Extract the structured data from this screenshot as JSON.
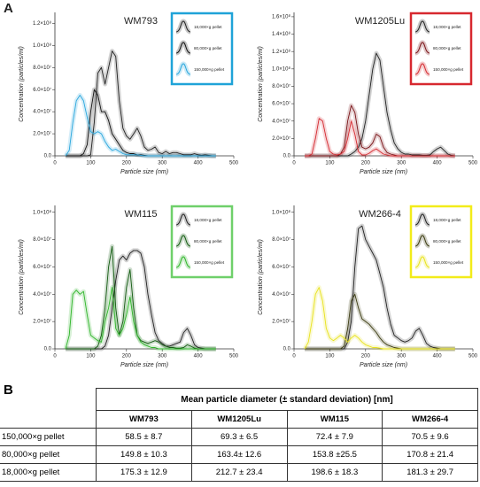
{
  "panels": {
    "a": "A",
    "b": "B"
  },
  "chart_data": [
    {
      "type": "line",
      "title": "WM793",
      "y_label": "Concentration (particles/ml)",
      "x_label": "Particle size (nm)",
      "legend_color": "#1fa3d8",
      "grid": false,
      "x": [
        30,
        40,
        50,
        60,
        70,
        80,
        90,
        100,
        110,
        120,
        130,
        140,
        150,
        160,
        170,
        180,
        190,
        200,
        210,
        220,
        230,
        240,
        250,
        260,
        270,
        280,
        290,
        300,
        310,
        320,
        330,
        340,
        350,
        360,
        370,
        380,
        390,
        400,
        410,
        420,
        430,
        440,
        450
      ],
      "xlim": [
        0,
        500
      ],
      "xticks": [
        0,
        100,
        200,
        300,
        400,
        500
      ],
      "ylim": [
        0,
        130000000.0
      ],
      "yticks": [
        {
          "value": 0,
          "label": "0.0"
        },
        {
          "value": 20000000.0,
          "label": "2.0×10⁷"
        },
        {
          "value": 40000000.0,
          "label": "4.0×10⁷"
        },
        {
          "value": 60000000.0,
          "label": "6.0×10⁷"
        },
        {
          "value": 80000000.0,
          "label": "8.0×10⁷"
        },
        {
          "value": 100000000.0,
          "label": "1.0×10⁸"
        },
        {
          "value": 120000000.0,
          "label": "1.2×10⁸"
        }
      ],
      "series": [
        {
          "name": "18,000×g pellet",
          "color": "#222222",
          "values": [
            0,
            0,
            0,
            0,
            0,
            0,
            0,
            1000000.0,
            30000000.0,
            75000000.0,
            80000000.0,
            65000000.0,
            80000000.0,
            95000000.0,
            90000000.0,
            50000000.0,
            25000000.0,
            18000000.0,
            15000000.0,
            20000000.0,
            25000000.0,
            18000000.0,
            8000000.0,
            5000000.0,
            6000000.0,
            8000000.0,
            3000000.0,
            2000000.0,
            4000000.0,
            2000000.0,
            3000000.0,
            3000000.0,
            2000000.0,
            1000000.0,
            1000000.0,
            1000000.0,
            2000000.0,
            1000000.0,
            500000.0,
            1000000.0,
            500000.0,
            0,
            0
          ]
        },
        {
          "name": "80,000×g pellet",
          "color": "#111111",
          "values": [
            0,
            0,
            0,
            0,
            0,
            2000000.0,
            10000000.0,
            40000000.0,
            60000000.0,
            55000000.0,
            40000000.0,
            40000000.0,
            32000000.0,
            20000000.0,
            15000000.0,
            10000000.0,
            5000000.0,
            3000000.0,
            2000000.0,
            2000000.0,
            1000000.0,
            1000000.0,
            500000.0,
            0,
            0,
            0,
            0,
            0,
            0,
            0,
            0,
            0,
            0,
            0,
            0,
            0,
            0,
            0,
            0,
            0,
            0,
            0,
            0
          ]
        },
        {
          "name": "150,000×g pellet",
          "color": "#2aa7dd",
          "values": [
            0,
            5000000.0,
            30000000.0,
            50000000.0,
            55000000.0,
            50000000.0,
            35000000.0,
            22000000.0,
            20000000.0,
            22000000.0,
            20000000.0,
            13000000.0,
            8000000.0,
            5000000.0,
            6000000.0,
            4000000.0,
            2000000.0,
            1000000.0,
            1000000.0,
            1000000.0,
            1000000.0,
            500000.0,
            0,
            0,
            0,
            0,
            0,
            0,
            0,
            0,
            0,
            0,
            0,
            0,
            0,
            0,
            0,
            0,
            0,
            0,
            0,
            0,
            0
          ]
        }
      ]
    },
    {
      "type": "line",
      "title": "WM1205Lu",
      "y_label": "Concentration (particles/ml)",
      "x_label": "Particle size (nm)",
      "legend_color": "#d7282f",
      "grid": false,
      "x": [
        30,
        40,
        50,
        60,
        70,
        80,
        90,
        100,
        110,
        120,
        130,
        140,
        150,
        160,
        170,
        180,
        190,
        200,
        210,
        220,
        230,
        240,
        250,
        260,
        270,
        280,
        290,
        300,
        310,
        320,
        330,
        340,
        350,
        360,
        370,
        380,
        390,
        400,
        410,
        420,
        430,
        440,
        450
      ],
      "xlim": [
        0,
        500
      ],
      "xticks": [
        0,
        100,
        200,
        300,
        400,
        500
      ],
      "ylim": [
        0,
        165000000.0
      ],
      "yticks": [
        {
          "value": 0,
          "label": "0.0"
        },
        {
          "value": 20000000.0,
          "label": "2.0×10⁷"
        },
        {
          "value": 40000000.0,
          "label": "4.0×10⁷"
        },
        {
          "value": 60000000.0,
          "label": "6.0×10⁷"
        },
        {
          "value": 80000000.0,
          "label": "8.0×10⁷"
        },
        {
          "value": 100000000.0,
          "label": "1.0×10⁸"
        },
        {
          "value": 120000000.0,
          "label": "1.2×10⁸"
        },
        {
          "value": 140000000.0,
          "label": "1.4×10⁸"
        },
        {
          "value": 160000000.0,
          "label": "1.6×10⁸"
        }
      ],
      "series": [
        {
          "name": "18,000×g pellet",
          "color": "#222222",
          "values": [
            0,
            0,
            0,
            0,
            0,
            0,
            0,
            0,
            0,
            0,
            0,
            0,
            0,
            2000000.0,
            5000000.0,
            10000000.0,
            20000000.0,
            40000000.0,
            70000000.0,
            100000000.0,
            118000000.0,
            110000000.0,
            80000000.0,
            50000000.0,
            30000000.0,
            15000000.0,
            8000000.0,
            4000000.0,
            2000000.0,
            2000000.0,
            1000000.0,
            1000000.0,
            1000000.0,
            500000.0,
            500000.0,
            1000000.0,
            5000000.0,
            8000000.0,
            10000000.0,
            6000000.0,
            2000000.0,
            500000.0,
            0
          ]
        },
        {
          "name": "80,000×g pellet",
          "color": "#7a1418",
          "values": [
            0,
            0,
            0,
            0,
            0,
            0,
            0,
            0,
            0,
            0,
            2000000.0,
            10000000.0,
            40000000.0,
            58000000.0,
            50000000.0,
            25000000.0,
            10000000.0,
            8000000.0,
            10000000.0,
            15000000.0,
            25000000.0,
            22000000.0,
            10000000.0,
            4000000.0,
            2000000.0,
            1000000.0,
            0,
            0,
            0,
            0,
            0,
            0,
            0,
            0,
            0,
            0,
            0,
            0,
            0,
            0,
            0,
            0,
            0
          ]
        },
        {
          "name": "150,000×g pellet",
          "color": "#d42a30",
          "values": [
            0,
            0,
            2000000.0,
            20000000.0,
            43000000.0,
            40000000.0,
            20000000.0,
            5000000.0,
            2000000.0,
            1000000.0,
            2000000.0,
            5000000.0,
            20000000.0,
            40000000.0,
            25000000.0,
            5000000.0,
            1000000.0,
            1000000.0,
            3000000.0,
            6000000.0,
            8000000.0,
            5000000.0,
            2000000.0,
            1000000.0,
            0,
            0,
            0,
            0,
            0,
            0,
            0,
            0,
            0,
            0,
            0,
            0,
            0,
            0,
            0,
            0,
            0,
            0,
            0
          ]
        }
      ]
    },
    {
      "type": "line",
      "title": "WM115",
      "y_label": "Concentration (particles/ml)",
      "x_label": "Particle size (nm)",
      "legend_color": "#6fd06a",
      "grid": false,
      "x": [
        30,
        40,
        50,
        60,
        70,
        80,
        90,
        100,
        110,
        120,
        130,
        140,
        150,
        160,
        170,
        180,
        190,
        200,
        210,
        220,
        230,
        240,
        250,
        260,
        270,
        280,
        290,
        300,
        310,
        320,
        330,
        340,
        350,
        360,
        370,
        380,
        390,
        400,
        410,
        420,
        430,
        440,
        450
      ],
      "xlim": [
        0,
        500
      ],
      "xticks": [
        0,
        100,
        200,
        300,
        400,
        500
      ],
      "ylim": [
        0,
        105000000.0
      ],
      "yticks": [
        {
          "value": 0,
          "label": "0.0"
        },
        {
          "value": 20000000.0,
          "label": "2.0×10⁷"
        },
        {
          "value": 40000000.0,
          "label": "4.0×10⁷"
        },
        {
          "value": 60000000.0,
          "label": "6.0×10⁷"
        },
        {
          "value": 80000000.0,
          "label": "8.0×10⁷"
        },
        {
          "value": 100000000.0,
          "label": "1.0×10⁸"
        }
      ],
      "series": [
        {
          "name": "18,000×g pellet",
          "color": "#222222",
          "values": [
            0,
            0,
            0,
            0,
            0,
            0,
            0,
            0,
            0,
            0,
            0,
            2000000.0,
            10000000.0,
            30000000.0,
            50000000.0,
            65000000.0,
            68000000.0,
            65000000.0,
            70000000.0,
            72000000.0,
            72000000.0,
            70000000.0,
            60000000.0,
            40000000.0,
            25000000.0,
            12000000.0,
            6000000.0,
            4000000.0,
            2000000.0,
            2000000.0,
            3000000.0,
            4000000.0,
            5000000.0,
            12000000.0,
            15000000.0,
            10000000.0,
            3000000.0,
            1000000.0,
            500000.0,
            0,
            0,
            0,
            0
          ]
        },
        {
          "name": "80,000×g pellet",
          "color": "#145c12",
          "values": [
            0,
            0,
            0,
            0,
            0,
            0,
            0,
            0,
            0,
            2000000.0,
            10000000.0,
            30000000.0,
            60000000.0,
            75000000.0,
            30000000.0,
            10000000.0,
            20000000.0,
            45000000.0,
            58000000.0,
            30000000.0,
            10000000.0,
            6000000.0,
            5000000.0,
            4000000.0,
            5000000.0,
            6000000.0,
            5000000.0,
            3000000.0,
            2000000.0,
            1000000.0,
            1000000.0,
            500000.0,
            500000.0,
            1000000.0,
            3000000.0,
            2000000.0,
            500000.0,
            0,
            0,
            0,
            0,
            0,
            0
          ]
        },
        {
          "name": "150,000×g pellet",
          "color": "#2fb52a",
          "values": [
            0,
            10000000.0,
            40000000.0,
            43000000.0,
            40000000.0,
            42000000.0,
            25000000.0,
            10000000.0,
            8000000.0,
            6000000.0,
            5000000.0,
            20000000.0,
            30000000.0,
            45000000.0,
            15000000.0,
            10000000.0,
            15000000.0,
            25000000.0,
            38000000.0,
            20000000.0,
            10000000.0,
            5000000.0,
            3000000.0,
            2000000.0,
            1000000.0,
            1000000.0,
            0,
            0,
            0,
            0,
            0,
            0,
            0,
            0,
            0,
            0,
            0,
            0,
            0,
            0,
            0,
            0,
            0
          ]
        }
      ]
    },
    {
      "type": "line",
      "title": "WM266-4",
      "y_label": "Concentration (particles/ml)",
      "x_label": "Particle size (nm)",
      "legend_color": "#f2ec1a",
      "grid": false,
      "x": [
        30,
        40,
        50,
        60,
        70,
        80,
        90,
        100,
        110,
        120,
        130,
        140,
        150,
        160,
        170,
        180,
        190,
        200,
        210,
        220,
        230,
        240,
        250,
        260,
        270,
        280,
        290,
        300,
        310,
        320,
        330,
        340,
        350,
        360,
        370,
        380,
        390,
        400,
        410,
        420,
        430,
        440,
        450
      ],
      "xlim": [
        0,
        500
      ],
      "xticks": [
        0,
        100,
        200,
        300,
        400,
        500
      ],
      "ylim": [
        0,
        105000000.0
      ],
      "yticks": [
        {
          "value": 0,
          "label": "0.0"
        },
        {
          "value": 20000000.0,
          "label": "2.0×10⁷"
        },
        {
          "value": 40000000.0,
          "label": "4.0×10⁷"
        },
        {
          "value": 60000000.0,
          "label": "6.0×10⁷"
        },
        {
          "value": 80000000.0,
          "label": "8.0×10⁷"
        },
        {
          "value": 100000000.0,
          "label": "1.0×10⁸"
        }
      ],
      "series": [
        {
          "name": "18,000×g pellet",
          "color": "#222222",
          "values": [
            0,
            0,
            0,
            0,
            0,
            0,
            0,
            0,
            0,
            0,
            0,
            0,
            5000000.0,
            20000000.0,
            60000000.0,
            88000000.0,
            90000000.0,
            80000000.0,
            75000000.0,
            70000000.0,
            65000000.0,
            55000000.0,
            45000000.0,
            30000000.0,
            18000000.0,
            10000000.0,
            8000000.0,
            6000000.0,
            5000000.0,
            6000000.0,
            8000000.0,
            13000000.0,
            15000000.0,
            10000000.0,
            4000000.0,
            2000000.0,
            1000000.0,
            500000.0,
            0,
            0,
            0,
            0,
            0
          ]
        },
        {
          "name": "80,000×g pellet",
          "color": "#3a3a10",
          "values": [
            0,
            0,
            0,
            0,
            0,
            0,
            0,
            0,
            0,
            0,
            0,
            2000000.0,
            15000000.0,
            35000000.0,
            40000000.0,
            30000000.0,
            22000000.0,
            20000000.0,
            18000000.0,
            15000000.0,
            12000000.0,
            8000000.0,
            5000000.0,
            3000000.0,
            2000000.0,
            1000000.0,
            500000.0,
            0,
            0,
            0,
            0,
            0,
            0,
            0,
            0,
            0,
            0,
            0,
            0,
            0,
            0,
            0,
            0
          ]
        },
        {
          "name": "150,000×g pellet",
          "color": "#e8e21c",
          "values": [
            0,
            5000000.0,
            20000000.0,
            40000000.0,
            45000000.0,
            35000000.0,
            15000000.0,
            8000000.0,
            6000000.0,
            8000000.0,
            10000000.0,
            8000000.0,
            5000000.0,
            8000000.0,
            10000000.0,
            8000000.0,
            5000000.0,
            3000000.0,
            2000000.0,
            1000000.0,
            1000000.0,
            500000.0,
            0,
            0,
            0,
            0,
            0,
            0,
            0,
            0,
            0,
            0,
            0,
            0,
            0,
            0,
            0,
            0,
            0,
            0,
            0,
            0,
            0
          ]
        }
      ]
    }
  ],
  "table": {
    "title": "Mean particle diameter (± standard deviation) [nm]",
    "columns": [
      "WM793",
      "WM1205Lu",
      "WM115",
      "WM266-4"
    ],
    "rows": [
      {
        "label": "150,000×g pellet",
        "cells": [
          "58.5 ± 8.7",
          "69.3 ± 6.5",
          "72.4 ± 7.9",
          "70.5 ± 9.6"
        ]
      },
      {
        "label": "80,000×g pellet",
        "cells": [
          "149.8 ± 10.3",
          "163.4± 12.6",
          "153.8 ±25.5",
          "170.8 ± 21.4"
        ]
      },
      {
        "label": "18,000×g pellet",
        "cells": [
          "175.3 ± 12.9",
          "212.7 ± 23.4",
          "198.6 ± 18.3",
          "181.3 ± 29.7"
        ]
      }
    ]
  }
}
